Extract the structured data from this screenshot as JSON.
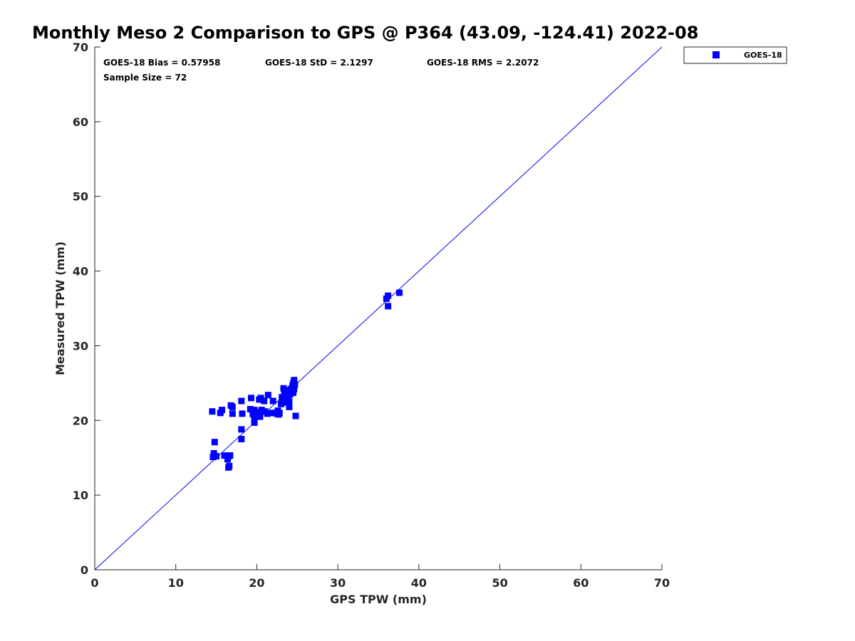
{
  "chart_data": {
    "type": "scatter",
    "title": "Monthly Meso 2 Comparison to GPS @ P364 (43.09, -124.41) 2022-08",
    "xlabel": "GPS TPW (mm)",
    "ylabel": "Measured TPW (mm)",
    "xlim": [
      0,
      70
    ],
    "ylim": [
      0,
      70
    ],
    "xticks": [
      0,
      10,
      20,
      30,
      40,
      50,
      60,
      70
    ],
    "yticks": [
      0,
      10,
      20,
      30,
      40,
      50,
      60,
      70
    ],
    "grid": false,
    "legend_position": "top-right outside",
    "stats": {
      "bias": "GOES-18 Bias = 0.57958",
      "std": "GOES-18 StD = 2.1297",
      "rms": "GOES-18 RMS = 2.2072",
      "sample": "Sample Size = 72"
    },
    "reference_line": {
      "x": [
        0,
        70
      ],
      "y": [
        0,
        70
      ],
      "color": "#0000ff"
    },
    "series": [
      {
        "name": "GOES-18",
        "color": "#0000ff",
        "marker": "square",
        "points": [
          [
            14.5,
            21.2
          ],
          [
            14.8,
            17.1
          ],
          [
            14.7,
            15.6
          ],
          [
            14.6,
            15.1
          ],
          [
            15.0,
            15.2
          ],
          [
            15.5,
            21.0
          ],
          [
            15.7,
            21.4
          ],
          [
            16.0,
            15.3
          ],
          [
            16.5,
            15.2
          ],
          [
            16.4,
            14.8
          ],
          [
            16.7,
            15.3
          ],
          [
            16.5,
            13.7
          ],
          [
            16.6,
            13.9
          ],
          [
            16.8,
            22.0
          ],
          [
            17.0,
            21.8
          ],
          [
            17.0,
            20.9
          ],
          [
            18.1,
            22.6
          ],
          [
            18.2,
            20.9
          ],
          [
            18.1,
            18.8
          ],
          [
            18.1,
            17.5
          ],
          [
            19.2,
            21.5
          ],
          [
            19.3,
            23.0
          ],
          [
            19.5,
            20.9
          ],
          [
            19.7,
            21.4
          ],
          [
            19.7,
            20.0
          ],
          [
            19.7,
            19.7
          ],
          [
            20.2,
            20.9
          ],
          [
            20.2,
            21.1
          ],
          [
            20.3,
            22.8
          ],
          [
            20.4,
            20.5
          ],
          [
            20.5,
            23.0
          ],
          [
            20.6,
            21.4
          ],
          [
            20.9,
            22.6
          ],
          [
            21.0,
            21.2
          ],
          [
            21.3,
            20.9
          ],
          [
            21.4,
            23.4
          ],
          [
            21.9,
            21.0
          ],
          [
            22.0,
            22.6
          ],
          [
            22.2,
            21.0
          ],
          [
            22.5,
            20.9
          ],
          [
            22.6,
            21.3
          ],
          [
            22.7,
            20.8
          ],
          [
            23.0,
            22.2
          ],
          [
            23.1,
            23.1
          ],
          [
            23.2,
            22.7
          ],
          [
            23.3,
            24.3
          ],
          [
            23.5,
            22.9
          ],
          [
            23.6,
            23.6
          ],
          [
            23.7,
            22.4
          ],
          [
            23.8,
            23.2
          ],
          [
            23.9,
            24.0
          ],
          [
            24.0,
            21.8
          ],
          [
            24.0,
            22.6
          ],
          [
            24.1,
            23.5
          ],
          [
            24.2,
            24.2
          ],
          [
            24.3,
            23.8
          ],
          [
            24.4,
            24.6
          ],
          [
            24.5,
            25.0
          ],
          [
            24.6,
            25.4
          ],
          [
            24.6,
            24.2
          ],
          [
            24.7,
            24.8
          ],
          [
            24.5,
            23.7
          ],
          [
            24.3,
            24.1
          ],
          [
            23.4,
            23.7
          ],
          [
            23.9,
            23.9
          ],
          [
            24.8,
            20.6
          ],
          [
            36.0,
            36.3
          ],
          [
            36.2,
            36.7
          ],
          [
            36.2,
            35.3
          ],
          [
            37.6,
            37.1
          ],
          [
            22.8,
            21.0
          ],
          [
            19.6,
            20.8
          ]
        ]
      }
    ]
  }
}
